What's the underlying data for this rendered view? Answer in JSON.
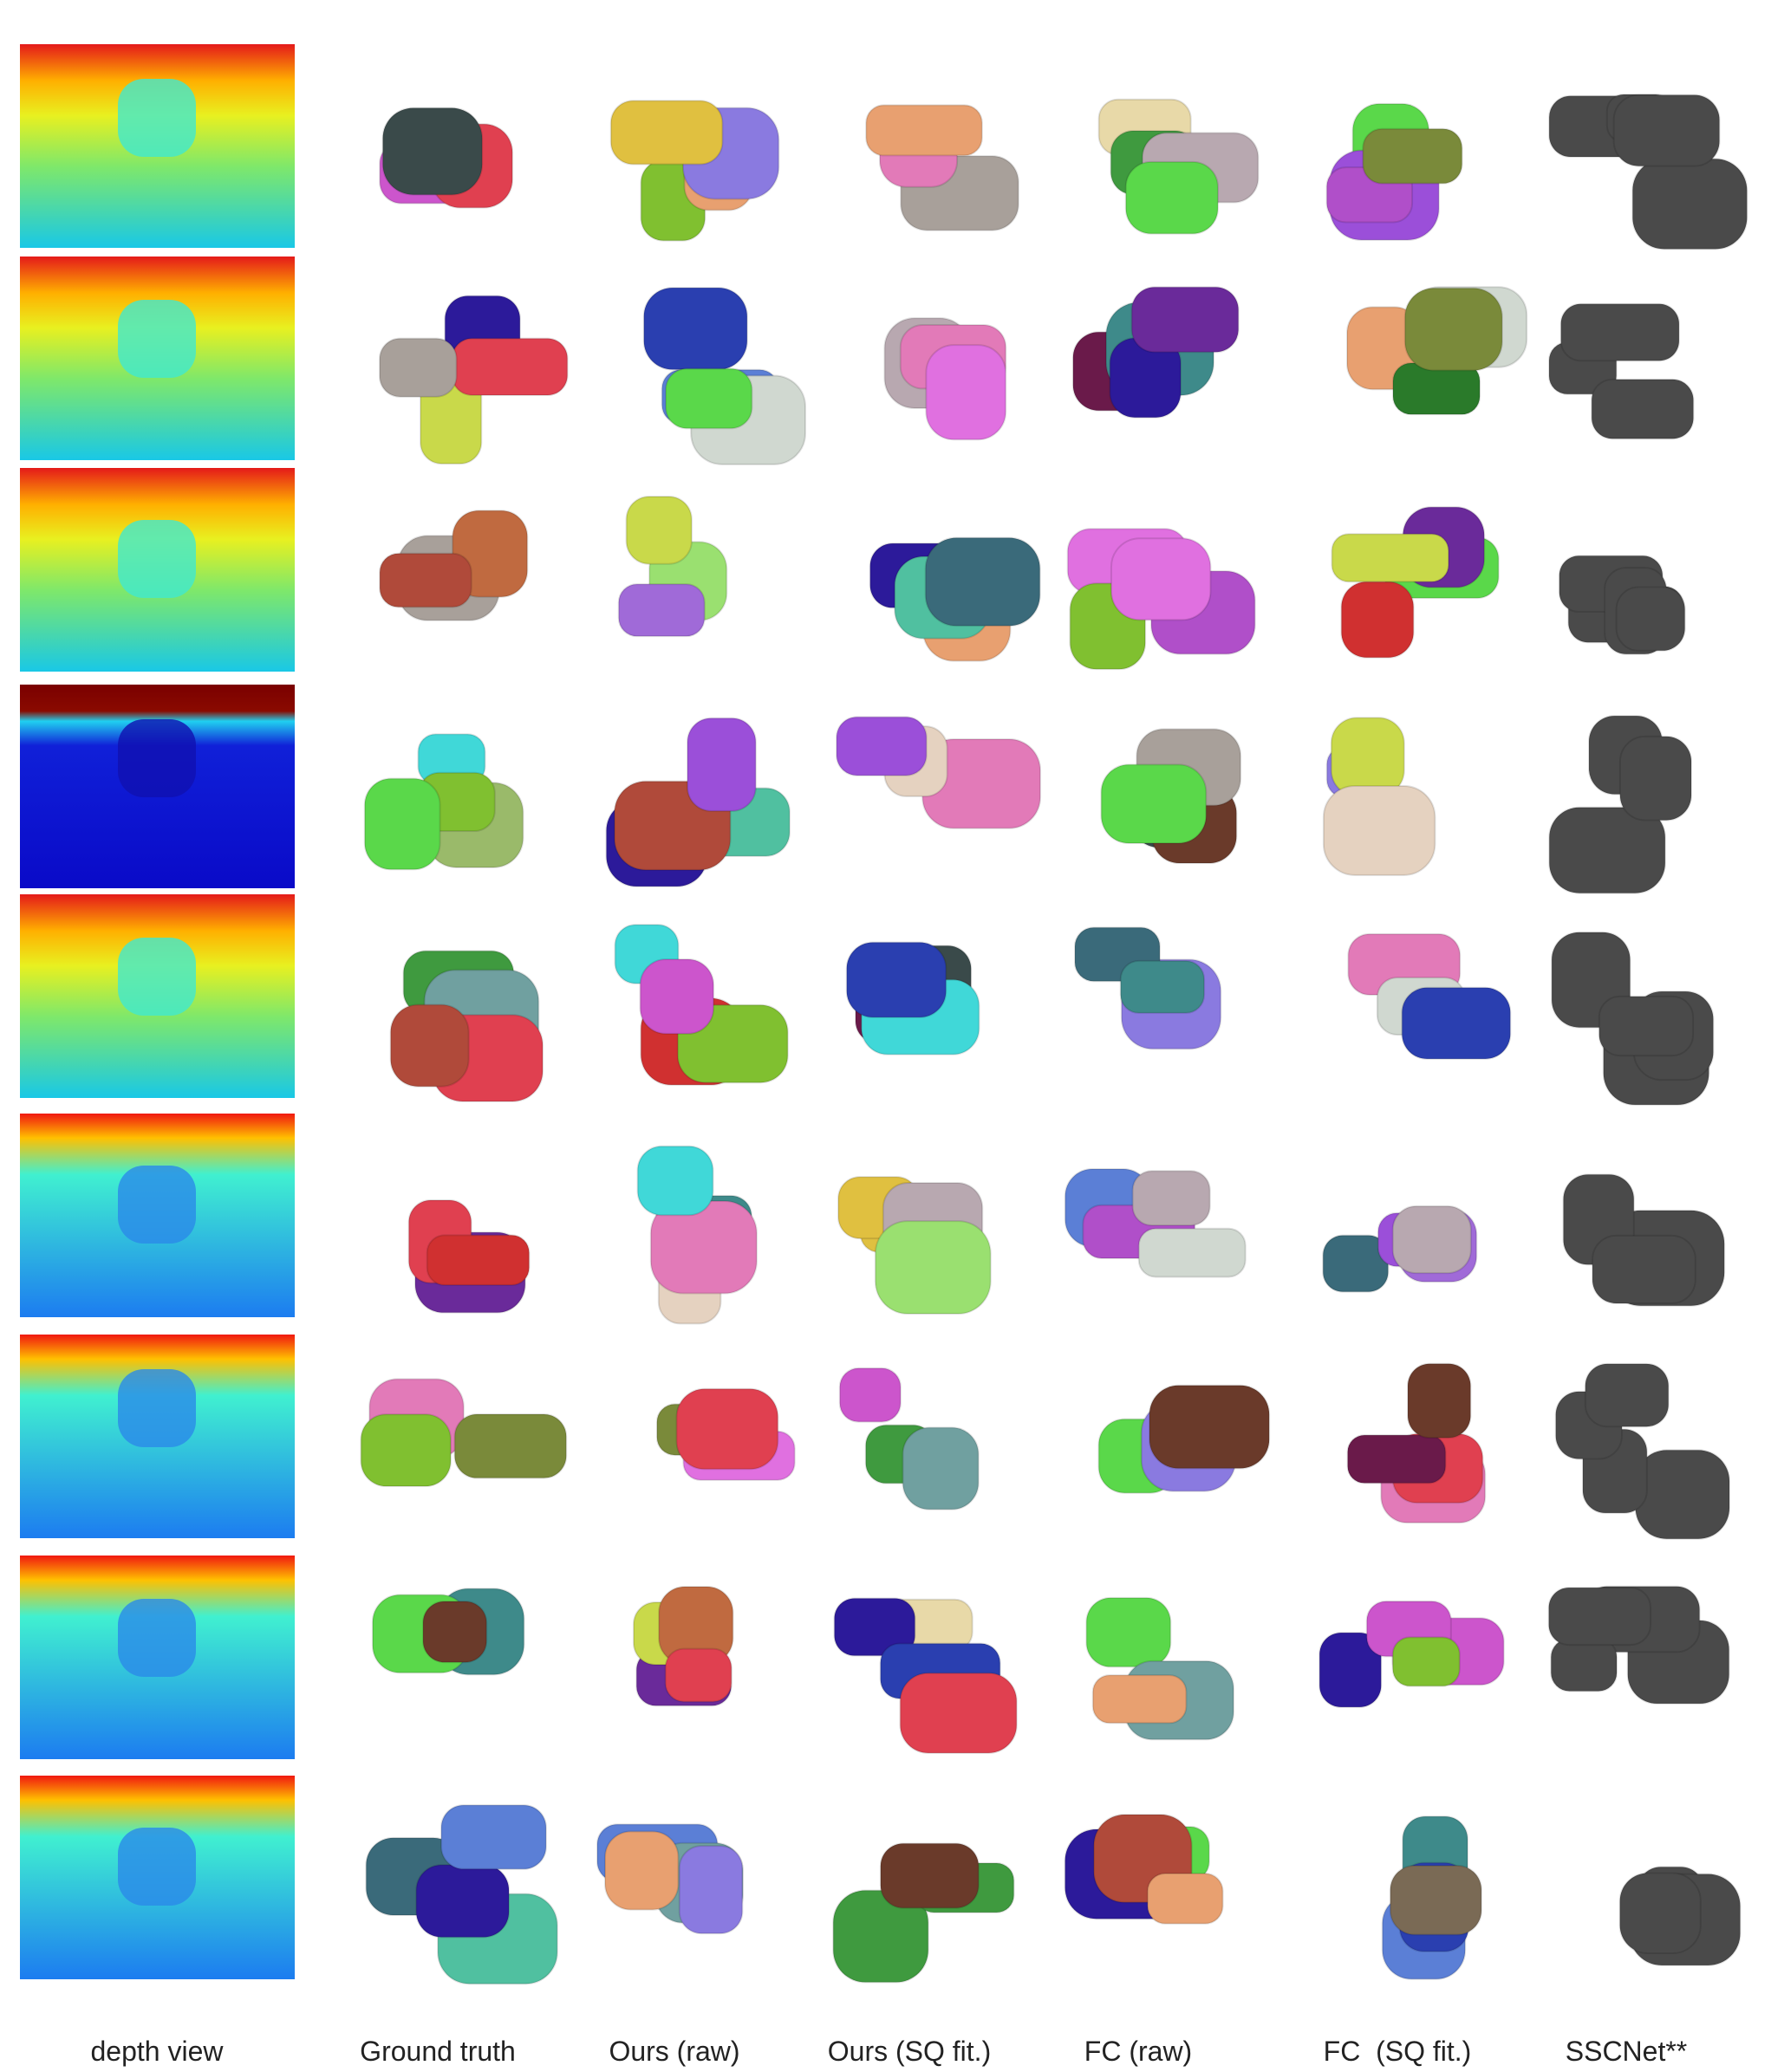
{
  "columns": [
    "depth view",
    "Ground truth",
    "Ours (raw)",
    "Ours (SQ fit.)",
    "FC (raw)",
    "FC  (SQ fit.)",
    "SSCNet**"
  ]
}
